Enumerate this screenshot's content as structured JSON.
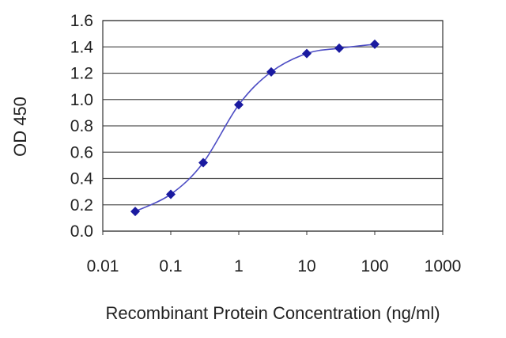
{
  "chart_data": {
    "type": "scatter",
    "title": "",
    "xlabel": "Recombinant Protein Concentration (ng/ml)",
    "ylabel": "OD 450",
    "x_scale": "log",
    "xlim": [
      0.01,
      1000
    ],
    "ylim": [
      0.0,
      1.6
    ],
    "x_ticks": [
      "0.01",
      "0.1",
      "1",
      "10",
      "100",
      "1000"
    ],
    "y_ticks": [
      "0.0",
      "0.2",
      "0.4",
      "0.6",
      "0.8",
      "1.0",
      "1.2",
      "1.4",
      "1.6"
    ],
    "grid": "horizontal",
    "fit_line": "sigmoidal curve through points",
    "colors": {
      "marker": "#1a1aa0",
      "line": "#4d4dc4",
      "grid": "#555555",
      "plot_background": "#ffffff"
    },
    "series": [
      {
        "x": [
          0.03,
          0.1,
          0.3,
          1,
          3,
          10,
          30,
          100
        ],
        "y": [
          0.15,
          0.28,
          0.52,
          0.96,
          1.21,
          1.35,
          1.39,
          1.42
        ]
      }
    ]
  }
}
